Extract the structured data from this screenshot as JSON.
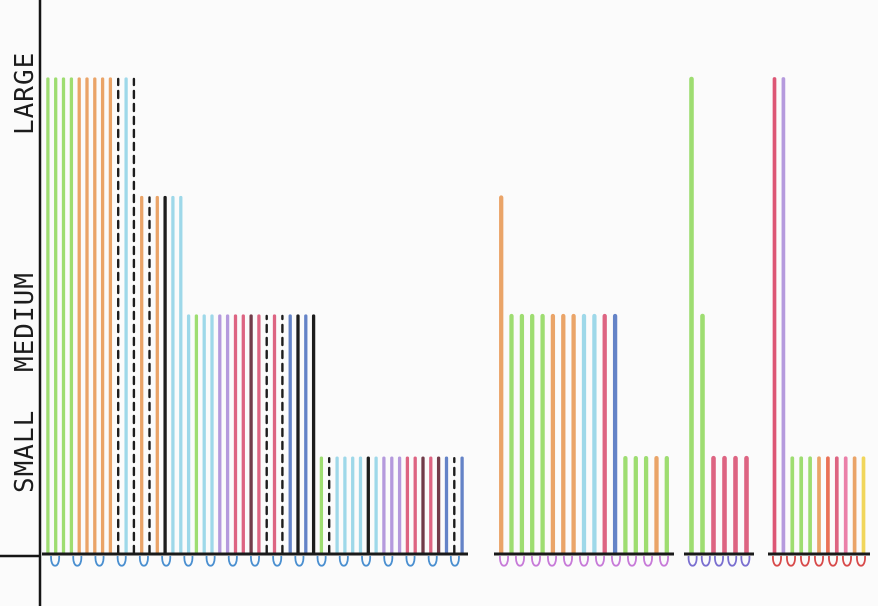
{
  "chart_data": {
    "type": "bar",
    "title": "",
    "xlabel": "",
    "ylabel": "",
    "y_levels": [
      {
        "label": "SMALL",
        "value": 1
      },
      {
        "label": "MEDIUM",
        "value": 2
      },
      {
        "label": "LARGE",
        "value": 3
      }
    ],
    "ylim": [
      0,
      3.2
    ],
    "grid": false,
    "groups": [
      {
        "baseline_color": "#1a1a1a",
        "loop_color": "#4a8fd0",
        "loops": 19,
        "bars": [
          {
            "value": 3.0,
            "color": "#8ed85a",
            "style": "solid"
          },
          {
            "value": 3.0,
            "color": "#8ed85a",
            "style": "solid"
          },
          {
            "value": 3.0,
            "color": "#8ed85a",
            "style": "solid"
          },
          {
            "value": 3.0,
            "color": "#8ed85a",
            "style": "solid"
          },
          {
            "value": 3.0,
            "color": "#e8954f",
            "style": "solid"
          },
          {
            "value": 3.0,
            "color": "#e8954f",
            "style": "solid"
          },
          {
            "value": 3.0,
            "color": "#e8954f",
            "style": "solid"
          },
          {
            "value": 3.0,
            "color": "#e8954f",
            "style": "solid"
          },
          {
            "value": 3.0,
            "color": "#e8954f",
            "style": "solid"
          },
          {
            "value": 3.0,
            "color": "#111111",
            "style": "dashed"
          },
          {
            "value": 3.0,
            "color": "#8ed3e6",
            "style": "solid"
          },
          {
            "value": 3.0,
            "color": "#111111",
            "style": "dashed"
          },
          {
            "value": 2.25,
            "color": "#e8954f",
            "style": "solid"
          },
          {
            "value": 2.25,
            "color": "#111111",
            "style": "dashed"
          },
          {
            "value": 2.25,
            "color": "#e8954f",
            "style": "solid"
          },
          {
            "value": 2.25,
            "color": "#111111",
            "style": "solid"
          },
          {
            "value": 2.25,
            "color": "#8ed3e6",
            "style": "solid"
          },
          {
            "value": 2.25,
            "color": "#8ed3e6",
            "style": "solid"
          },
          {
            "value": 1.5,
            "color": "#8ed3e6",
            "style": "solid"
          },
          {
            "value": 1.5,
            "color": "#8ed85a",
            "style": "solid"
          },
          {
            "value": 1.5,
            "color": "#8ed3e6",
            "style": "solid"
          },
          {
            "value": 1.5,
            "color": "#8ed3e6",
            "style": "solid"
          },
          {
            "value": 1.5,
            "color": "#a98ad8",
            "style": "solid"
          },
          {
            "value": 1.5,
            "color": "#a98ad8",
            "style": "solid"
          },
          {
            "value": 1.5,
            "color": "#d84a6e",
            "style": "solid"
          },
          {
            "value": 1.5,
            "color": "#d84a6e",
            "style": "solid"
          },
          {
            "value": 1.5,
            "color": "#5a1a2a",
            "style": "solid"
          },
          {
            "value": 1.5,
            "color": "#d84a6e",
            "style": "solid"
          },
          {
            "value": 1.5,
            "color": "#111111",
            "style": "dashed"
          },
          {
            "value": 1.5,
            "color": "#d84a6e",
            "style": "solid"
          },
          {
            "value": 1.5,
            "color": "#111111",
            "style": "dashed"
          },
          {
            "value": 1.5,
            "color": "#4a6fbf",
            "style": "solid"
          },
          {
            "value": 1.5,
            "color": "#111111",
            "style": "solid"
          },
          {
            "value": 1.5,
            "color": "#4a6fbf",
            "style": "solid"
          },
          {
            "value": 1.5,
            "color": "#111111",
            "style": "solid"
          },
          {
            "value": 0.6,
            "color": "#8ed85a",
            "style": "solid"
          },
          {
            "value": 0.6,
            "color": "#111111",
            "style": "dashed"
          },
          {
            "value": 0.6,
            "color": "#8ed3e6",
            "style": "solid"
          },
          {
            "value": 0.6,
            "color": "#8ed3e6",
            "style": "solid"
          },
          {
            "value": 0.6,
            "color": "#8ed3e6",
            "style": "solid"
          },
          {
            "value": 0.6,
            "color": "#8ed3e6",
            "style": "solid"
          },
          {
            "value": 0.6,
            "color": "#111111",
            "style": "solid"
          },
          {
            "value": 0.6,
            "color": "#8ed3e6",
            "style": "solid"
          },
          {
            "value": 0.6,
            "color": "#a98ad8",
            "style": "solid"
          },
          {
            "value": 0.6,
            "color": "#a98ad8",
            "style": "solid"
          },
          {
            "value": 0.6,
            "color": "#a98ad8",
            "style": "solid"
          },
          {
            "value": 0.6,
            "color": "#d84a6e",
            "style": "solid"
          },
          {
            "value": 0.6,
            "color": "#d84a6e",
            "style": "solid"
          },
          {
            "value": 0.6,
            "color": "#5a1a2a",
            "style": "solid"
          },
          {
            "value": 0.6,
            "color": "#d84a6e",
            "style": "solid"
          },
          {
            "value": 0.6,
            "color": "#5a1a2a",
            "style": "solid"
          },
          {
            "value": 0.6,
            "color": "#4a6fbf",
            "style": "solid"
          },
          {
            "value": 0.6,
            "color": "#111111",
            "style": "dashed"
          },
          {
            "value": 0.6,
            "color": "#4a6fbf",
            "style": "solid"
          }
        ]
      },
      {
        "baseline_color": "#1a1a1a",
        "loop_color": "#c77ad8",
        "loops": 11,
        "bars": [
          {
            "value": 2.25,
            "color": "#e8954f",
            "style": "solid"
          },
          {
            "value": 1.5,
            "color": "#8ed85a",
            "style": "solid"
          },
          {
            "value": 1.5,
            "color": "#8ed85a",
            "style": "solid"
          },
          {
            "value": 1.5,
            "color": "#8ed85a",
            "style": "solid"
          },
          {
            "value": 1.5,
            "color": "#8ed85a",
            "style": "solid"
          },
          {
            "value": 1.5,
            "color": "#e8954f",
            "style": "solid"
          },
          {
            "value": 1.5,
            "color": "#e8954f",
            "style": "solid"
          },
          {
            "value": 1.5,
            "color": "#e8954f",
            "style": "solid"
          },
          {
            "value": 1.5,
            "color": "#8ed3e6",
            "style": "solid"
          },
          {
            "value": 1.5,
            "color": "#8ed3e6",
            "style": "solid"
          },
          {
            "value": 1.5,
            "color": "#d84a6e",
            "style": "solid"
          },
          {
            "value": 1.5,
            "color": "#4a6fbf",
            "style": "solid"
          },
          {
            "value": 0.6,
            "color": "#8ed85a",
            "style": "solid"
          },
          {
            "value": 0.6,
            "color": "#8ed85a",
            "style": "solid"
          },
          {
            "value": 0.6,
            "color": "#8ed85a",
            "style": "solid"
          },
          {
            "value": 0.6,
            "color": "#e8954f",
            "style": "solid"
          },
          {
            "value": 0.6,
            "color": "#8ed85a",
            "style": "solid"
          }
        ]
      },
      {
        "baseline_color": "#1a1a1a",
        "loop_color": "#7a6fd0",
        "loops": 5,
        "bars": [
          {
            "value": 3.0,
            "color": "#8ed85a",
            "style": "solid"
          },
          {
            "value": 1.5,
            "color": "#8ed85a",
            "style": "solid"
          },
          {
            "value": 0.6,
            "color": "#d84a6e",
            "style": "solid"
          },
          {
            "value": 0.6,
            "color": "#d84a6e",
            "style": "solid"
          },
          {
            "value": 0.6,
            "color": "#d84a6e",
            "style": "solid"
          },
          {
            "value": 0.6,
            "color": "#d84a6e",
            "style": "solid"
          }
        ]
      },
      {
        "baseline_color": "#1a1a1a",
        "loop_color": "#d84a4a",
        "loops": 7,
        "bars": [
          {
            "value": 3.0,
            "color": "#d83a5e",
            "style": "solid"
          },
          {
            "value": 3.0,
            "color": "#a98ad8",
            "style": "solid"
          },
          {
            "value": 0.6,
            "color": "#8ed85a",
            "style": "solid"
          },
          {
            "value": 0.6,
            "color": "#8ed85a",
            "style": "solid"
          },
          {
            "value": 0.6,
            "color": "#8ed85a",
            "style": "solid"
          },
          {
            "value": 0.6,
            "color": "#e8954f",
            "style": "solid"
          },
          {
            "value": 0.6,
            "color": "#e85a3a",
            "style": "solid"
          },
          {
            "value": 0.6,
            "color": "#d84a6e",
            "style": "solid"
          },
          {
            "value": 0.6,
            "color": "#e86a9a",
            "style": "solid"
          },
          {
            "value": 0.6,
            "color": "#e8954f",
            "style": "solid"
          },
          {
            "value": 0.6,
            "color": "#f0d040",
            "style": "solid"
          }
        ]
      }
    ]
  }
}
